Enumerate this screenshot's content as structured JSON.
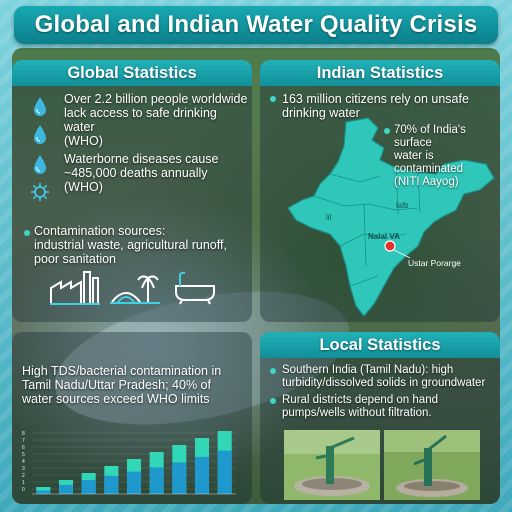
{
  "title": "Global and Indian Water Quality Crisis",
  "global": {
    "heading": "Global Statistics",
    "stat1": [
      "Over 2.2 billion people worldwide",
      "lack access to safe drinking water",
      "(WHO)"
    ],
    "stat2": [
      "Waterborne diseases cause",
      "~485,000 deaths annually",
      "(WHO)"
    ],
    "sources": [
      "Contamination sources:",
      "industrial waste, agricultural runoff,",
      "poor sanitation"
    ],
    "icons": [
      "water-drop-icon",
      "water-drop-icon",
      "water-drop-icon",
      "germ-icon",
      "factory-icon",
      "farm-icon",
      "bathtub-icon"
    ]
  },
  "indian": {
    "heading": "Indian Statistics",
    "stat1": [
      "163 million citizens rely on unsafe",
      "drinking water"
    ],
    "stat2": [
      "70% of India's surface",
      "water is contaminated",
      "(NITI Aayog)"
    ],
    "map_labels": {
      "lil": "lil",
      "lalb": "lalb",
      "marker": "Nalal VA",
      "callout": "Ustar Porarge"
    }
  },
  "tds": {
    "text": [
      "High TDS/bacterial contamination in",
      "Tamil Nadu/Uttar Pradesh; 40% of",
      "water sources exceed WHO limits"
    ]
  },
  "chart_data": {
    "type": "bar",
    "series": [
      {
        "values": [
          1,
          2,
          3,
          4,
          5,
          6,
          7,
          8,
          9
        ]
      },
      {
        "values": [
          0.5,
          1.3,
          2,
          2.6,
          3.2,
          3.8,
          4.5,
          5.3,
          6.2
        ]
      }
    ],
    "ylim": [
      0,
      10
    ],
    "ytick_labels": [
      "0",
      "1",
      "2",
      "3",
      "4",
      "5",
      "6",
      "7",
      "8"
    ],
    "grid": true
  },
  "local": {
    "heading": "Local Statistics",
    "stat1": [
      "Southern India (Tamil Nadu): high",
      "turbidity/dissolved solids in groundwater"
    ],
    "stat2": [
      "Rural districts depend on hand",
      "pumps/wells without filtration."
    ],
    "photos": [
      "hand-pump-photo",
      "hand-pump-photo"
    ]
  },
  "colors": {
    "accent": "#12a3ad",
    "map": "#2fc7b9",
    "bar_light": "#32d7b8",
    "bar_dark": "#1c8ed0"
  }
}
